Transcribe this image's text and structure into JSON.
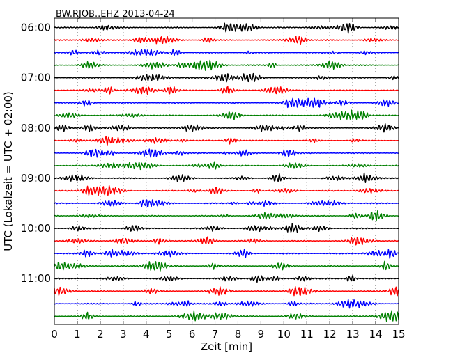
{
  "chart_data": {
    "type": "line",
    "title": "BW.RJOB..EHZ 2013-04-24",
    "xlabel": "Zeit  [min]",
    "ylabel": "UTC (Lokalzeit = UTC + 02:00)",
    "xlim": [
      0,
      15
    ],
    "x_ticks": [
      "0",
      "1",
      "2",
      "3",
      "4",
      "5",
      "6",
      "7",
      "8",
      "9",
      "10",
      "11",
      "12",
      "13",
      "14",
      "15"
    ],
    "y_ticks": [
      "06:00",
      "07:00",
      "08:00",
      "09:00",
      "10:00",
      "11:00"
    ],
    "trace_interval_minutes": 15,
    "trace_count": 24,
    "trace_colors": [
      "#000000",
      "#ff0000",
      "#0000ff",
      "#008000"
    ],
    "x_grid": "dotted",
    "y_grid": "off",
    "legend": "none"
  }
}
